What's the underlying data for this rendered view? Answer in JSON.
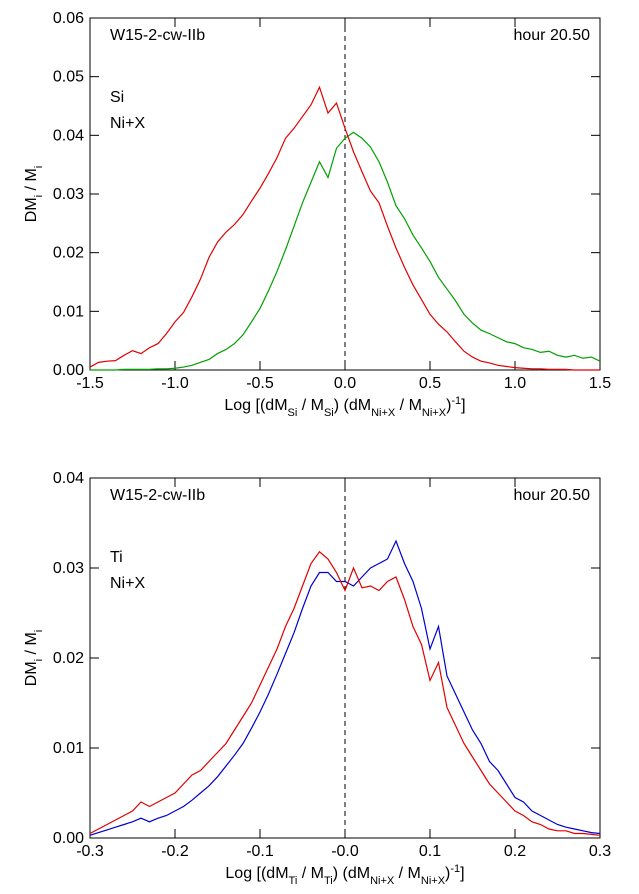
{
  "chart_data": [
    {
      "type": "line",
      "annotations": [
        "W15-2-cw-IIb",
        "hour 20.50"
      ],
      "xlabel": [
        {
          "text": "Log [(dM"
        },
        {
          "text": "Si",
          "shift": "sub"
        },
        {
          "text": " / M"
        },
        {
          "text": "Si",
          "shift": "sub"
        },
        {
          "text": ") (dM"
        },
        {
          "text": "Ni+X",
          "shift": "sub"
        },
        {
          "text": " / M"
        },
        {
          "text": "Ni+X",
          "shift": "sub"
        },
        {
          "text": ")"
        },
        {
          "text": "-1",
          "shift": "super"
        },
        {
          "text": "]"
        }
      ],
      "ylabel": [
        {
          "text": "DM"
        },
        {
          "text": "i",
          "shift": "sub"
        },
        {
          "text": " / M"
        },
        {
          "text": "i",
          "shift": "sub"
        }
      ],
      "xlim": [
        -1.5,
        1.5
      ],
      "ylim": [
        0,
        0.06
      ],
      "xticks": [
        -1.5,
        {
          "value": -1,
          "label": "-1.0"
        },
        -0.5,
        {
          "value": 0,
          "label": "0.0"
        },
        0.5,
        {
          "value": 1,
          "label": "1.0"
        },
        1.5
      ],
      "yticks": [
        {
          "value": 0,
          "label": "0.00"
        },
        {
          "value": 0.01,
          "label": "0.01"
        },
        {
          "value": 0.02,
          "label": "0.02"
        },
        {
          "value": 0.03,
          "label": "0.03"
        },
        {
          "value": 0.04,
          "label": "0.04"
        },
        {
          "value": 0.05,
          "label": "0.05"
        },
        {
          "value": 0.06,
          "label": "0.06"
        }
      ],
      "reference_line_x": 0,
      "x": [
        -1.5,
        -1.45,
        -1.4,
        -1.35,
        -1.3,
        -1.25,
        -1.2,
        -1.15,
        -1.1,
        -1.05,
        -1.0,
        -0.95,
        -0.9,
        -0.85,
        -0.8,
        -0.75,
        -0.7,
        -0.65,
        -0.6,
        -0.55,
        -0.5,
        -0.45,
        -0.4,
        -0.35,
        -0.3,
        -0.25,
        -0.2,
        -0.15,
        -0.1,
        -0.05,
        0.0,
        0.05,
        0.1,
        0.15,
        0.2,
        0.25,
        0.3,
        0.35,
        0.4,
        0.45,
        0.5,
        0.55,
        0.6,
        0.65,
        0.7,
        0.75,
        0.8,
        0.85,
        0.9,
        0.95,
        1.0,
        1.05,
        1.1,
        1.15,
        1.2,
        1.25,
        1.3,
        1.35,
        1.4,
        1.45,
        1.5
      ],
      "series": [
        {
          "name": "Si",
          "color": "#00a000",
          "values": [
            0,
            0,
            0,
            0,
            0.0001,
            0.0001,
            0.0001,
            0.0001,
            0.0002,
            0.0002,
            0.0003,
            0.0005,
            0.0008,
            0.0013,
            0.0018,
            0.0028,
            0.0035,
            0.0045,
            0.006,
            0.0082,
            0.0105,
            0.0135,
            0.0168,
            0.0205,
            0.0245,
            0.0285,
            0.032,
            0.0355,
            0.0328,
            0.0378,
            0.0395,
            0.0405,
            0.0395,
            0.038,
            0.0355,
            0.032,
            0.028,
            0.0258,
            0.023,
            0.0208,
            0.0185,
            0.0158,
            0.0138,
            0.0118,
            0.0095,
            0.008,
            0.0068,
            0.0062,
            0.0055,
            0.0048,
            0.0045,
            0.0038,
            0.0035,
            0.003,
            0.0032,
            0.0025,
            0.0022,
            0.0025,
            0.002,
            0.0022,
            0.0015
          ]
        },
        {
          "name": "Ni+X",
          "color": "#e00000",
          "values": [
            0.0005,
            0.0013,
            0.0015,
            0.0016,
            0.0025,
            0.0033,
            0.0028,
            0.0038,
            0.0045,
            0.0062,
            0.0082,
            0.0098,
            0.0125,
            0.0155,
            0.0192,
            0.0218,
            0.0235,
            0.0248,
            0.0265,
            0.0288,
            0.031,
            0.0335,
            0.0362,
            0.0395,
            0.0412,
            0.0432,
            0.0452,
            0.0482,
            0.0438,
            0.0455,
            0.0412,
            0.0372,
            0.0338,
            0.0305,
            0.0285,
            0.0245,
            0.0208,
            0.0175,
            0.0145,
            0.012,
            0.0095,
            0.0078,
            0.0065,
            0.0048,
            0.0032,
            0.0022,
            0.0015,
            0.0012,
            0.0008,
            0.0006,
            0.0004,
            0.0003,
            0.0002,
            0.0002,
            0.0001,
            0.0001,
            0.0001,
            0,
            0,
            0,
            0
          ]
        }
      ]
    },
    {
      "type": "line",
      "annotations": [
        "W15-2-cw-IIb",
        "hour 20.50"
      ],
      "xlabel": [
        {
          "text": "Log [(dM"
        },
        {
          "text": "Ti",
          "shift": "sub"
        },
        {
          "text": " / M"
        },
        {
          "text": "Ti",
          "shift": "sub"
        },
        {
          "text": ") (dM"
        },
        {
          "text": "Ni+X",
          "shift": "sub"
        },
        {
          "text": " / M"
        },
        {
          "text": "Ni+X",
          "shift": "sub"
        },
        {
          "text": ")"
        },
        {
          "text": "-1",
          "shift": "super"
        },
        {
          "text": "]"
        }
      ],
      "ylabel": [
        {
          "text": "DM"
        },
        {
          "text": "i",
          "shift": "sub"
        },
        {
          "text": " / M"
        },
        {
          "text": "i",
          "shift": "sub"
        }
      ],
      "xlim": [
        -0.3,
        0.3
      ],
      "ylim": [
        0,
        0.04
      ],
      "xticks": [
        -0.3,
        -0.2,
        -0.1,
        {
          "value": 0,
          "label": "-0.0"
        },
        0.1,
        0.2,
        0.3
      ],
      "yticks": [
        {
          "value": 0,
          "label": "0.00"
        },
        {
          "value": 0.01,
          "label": "0.01"
        },
        {
          "value": 0.02,
          "label": "0.02"
        },
        {
          "value": 0.03,
          "label": "0.03"
        },
        {
          "value": 0.04,
          "label": "0.04"
        }
      ],
      "reference_line_x": 0,
      "x": [
        -0.3,
        -0.29,
        -0.28,
        -0.27,
        -0.26,
        -0.25,
        -0.24,
        -0.23,
        -0.22,
        -0.21,
        -0.2,
        -0.19,
        -0.18,
        -0.17,
        -0.16,
        -0.15,
        -0.14,
        -0.13,
        -0.12,
        -0.11,
        -0.1,
        -0.09,
        -0.08,
        -0.07,
        -0.06,
        -0.05,
        -0.04,
        -0.03,
        -0.02,
        -0.01,
        0,
        0.01,
        0.02,
        0.03,
        0.04,
        0.05,
        0.06,
        0.07,
        0.08,
        0.09,
        0.1,
        0.11,
        0.12,
        0.13,
        0.14,
        0.15,
        0.16,
        0.17,
        0.18,
        0.19,
        0.2,
        0.21,
        0.22,
        0.23,
        0.24,
        0.25,
        0.26,
        0.27,
        0.28,
        0.29,
        0.3
      ],
      "series": [
        {
          "name": "Ti",
          "color": "#0000d0",
          "values": [
            0.0003,
            0.0006,
            0.0009,
            0.0012,
            0.0015,
            0.0018,
            0.0022,
            0.0018,
            0.0022,
            0.0025,
            0.003,
            0.0035,
            0.0042,
            0.005,
            0.0058,
            0.0068,
            0.008,
            0.0092,
            0.0105,
            0.0122,
            0.014,
            0.016,
            0.0182,
            0.0205,
            0.0228,
            0.0255,
            0.028,
            0.0295,
            0.0295,
            0.0285,
            0.0285,
            0.028,
            0.029,
            0.03,
            0.0305,
            0.031,
            0.033,
            0.0305,
            0.0285,
            0.0255,
            0.021,
            0.0235,
            0.018,
            0.016,
            0.014,
            0.012,
            0.0105,
            0.0085,
            0.0075,
            0.006,
            0.0045,
            0.004,
            0.003,
            0.0025,
            0.002,
            0.0015,
            0.0012,
            0.001,
            0.0008,
            0.0006,
            0.0005
          ]
        },
        {
          "name": "Ni+X",
          "color": "#e00000",
          "values": [
            0.0005,
            0.001,
            0.0015,
            0.002,
            0.0025,
            0.003,
            0.004,
            0.0035,
            0.004,
            0.0045,
            0.005,
            0.006,
            0.007,
            0.0075,
            0.0085,
            0.0095,
            0.0105,
            0.012,
            0.0135,
            0.015,
            0.017,
            0.019,
            0.021,
            0.0235,
            0.0255,
            0.028,
            0.0305,
            0.0318,
            0.031,
            0.0295,
            0.0275,
            0.03,
            0.0278,
            0.028,
            0.0275,
            0.0285,
            0.029,
            0.0265,
            0.0235,
            0.0215,
            0.0175,
            0.0195,
            0.0145,
            0.0125,
            0.0105,
            0.009,
            0.0075,
            0.006,
            0.005,
            0.004,
            0.003,
            0.0025,
            0.0018,
            0.0015,
            0.001,
            0.0008,
            0.0008,
            0.0005,
            0.0005,
            0.0004,
            0.0003
          ]
        }
      ]
    }
  ]
}
